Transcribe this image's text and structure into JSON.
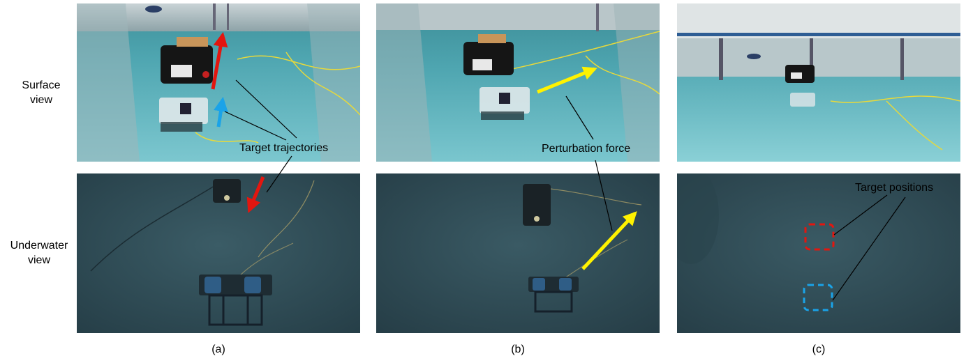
{
  "row_labels": {
    "surface": [
      "Surface",
      "view"
    ],
    "underwater": [
      "Underwater",
      "view"
    ]
  },
  "panels": [
    {
      "caption": "(a)"
    },
    {
      "caption": "(b)"
    },
    {
      "caption": "(c)"
    }
  ],
  "annotations": {
    "target_trajectories": "Target trajectories",
    "perturbation_force": "Perturbation force",
    "target_positions": "Target positions"
  },
  "colors": {
    "trajectory_red": "#e3160f",
    "trajectory_blue": "#1aa3e8",
    "perturbation_yellow": "#fff200",
    "water_surface": "#5fb2bd",
    "water_underwater": "#2f4b56"
  }
}
